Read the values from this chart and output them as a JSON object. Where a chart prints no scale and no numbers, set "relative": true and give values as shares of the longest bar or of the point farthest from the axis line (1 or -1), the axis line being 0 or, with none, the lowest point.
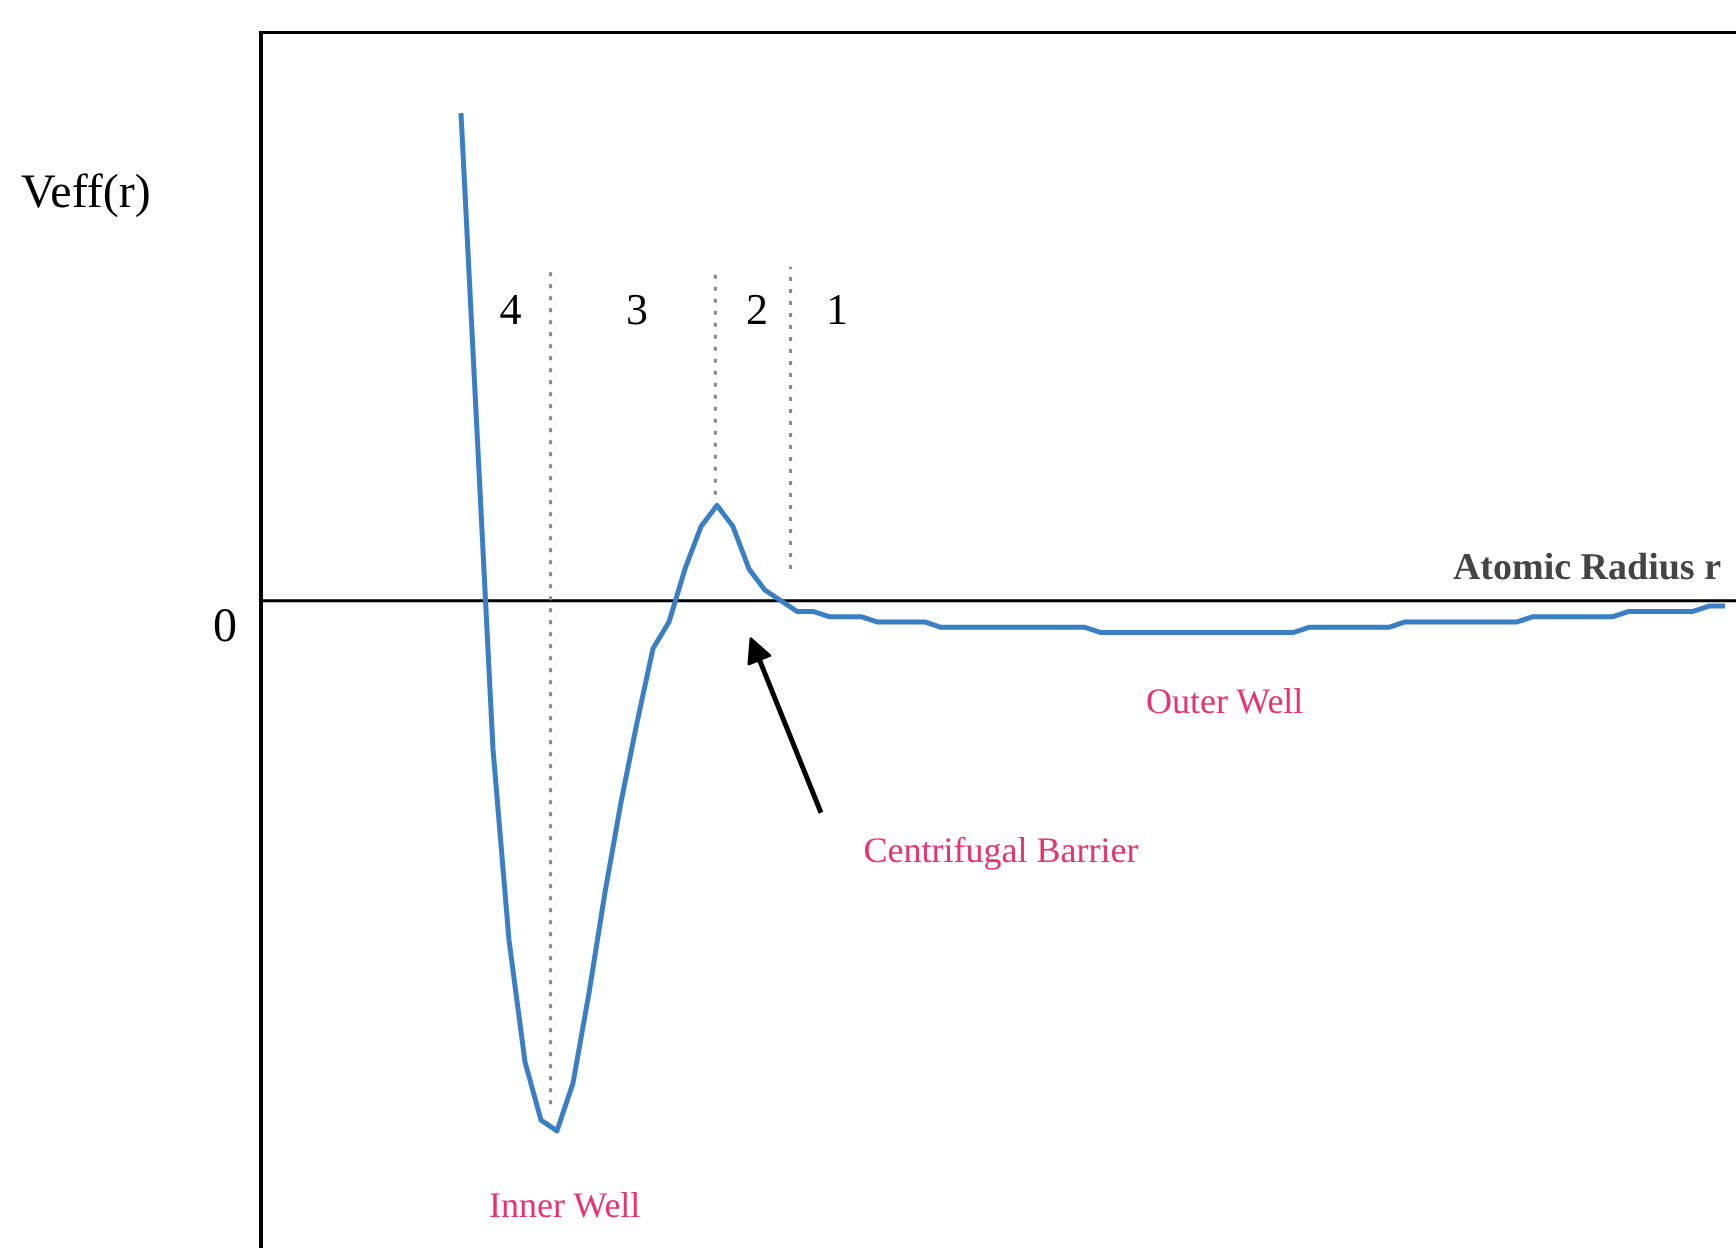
{
  "chart_data": {
    "type": "line",
    "relative": true,
    "xlabel": "Atomic Radius r",
    "categories": [
      null,
      null,
      null,
      null,
      null,
      null,
      null,
      null,
      null,
      null,
      null,
      null,
      null,
      null,
      null,
      null,
      null,
      null,
      null,
      null,
      null,
      null,
      null,
      null,
      null,
      null,
      null,
      null,
      null,
      null,
      null,
      null,
      null,
      null,
      null,
      null,
      null,
      null,
      null,
      null,
      null,
      null,
      null,
      null,
      null,
      null,
      null,
      null,
      null,
      null,
      null,
      null,
      null,
      null,
      null,
      null,
      null,
      null,
      null,
      null,
      null,
      null,
      null,
      null,
      null,
      null,
      null,
      null,
      null,
      null,
      null,
      null,
      null,
      null,
      null,
      null,
      null,
      null,
      null,
      null
    ],
    "series": [
      {
        "color": "#3a7fc4",
        "values": [
          0.92,
          0.32,
          -0.28,
          -0.64,
          -0.87,
          -0.98,
          -1,
          -0.91,
          -0.74,
          -0.55,
          -0.38,
          -0.23,
          -0.09,
          -0.04,
          0.06,
          0.14,
          0.18,
          0.14,
          0.06,
          0.02,
          0,
          -0.02,
          -0.02,
          -0.03,
          -0.03,
          -0.03,
          -0.04,
          -0.04,
          -0.04,
          -0.04,
          -0.05,
          -0.05,
          -0.05,
          -0.05,
          -0.05,
          -0.05,
          -0.05,
          -0.05,
          -0.05,
          -0.05,
          -0.06,
          -0.06,
          -0.06,
          -0.06,
          -0.06,
          -0.06,
          -0.06,
          -0.06,
          -0.06,
          -0.06,
          -0.06,
          -0.06,
          -0.06,
          -0.05,
          -0.05,
          -0.05,
          -0.05,
          -0.05,
          -0.05,
          -0.04,
          -0.04,
          -0.04,
          -0.04,
          -0.04,
          -0.04,
          -0.04,
          -0.04,
          -0.03,
          -0.03,
          -0.03,
          -0.03,
          -0.03,
          -0.03,
          -0.02,
          -0.02,
          -0.02,
          -0.02,
          -0.02,
          -0.01,
          -0.01
        ]
      }
    ],
    "annotations": [
      "Veff(r)",
      "0",
      "4",
      "3",
      "2",
      "1",
      "Outer Well",
      "Centrifugal Barrier",
      "Inner Well"
    ]
  }
}
